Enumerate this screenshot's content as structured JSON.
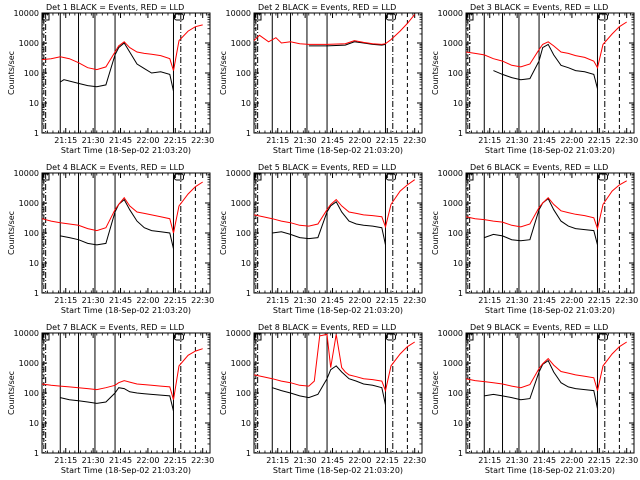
{
  "chart_data": [
    {
      "type": "line",
      "title": "Det 1  BLACK = Events, RED = LLD",
      "ylabel": "Counts/sec",
      "xlabel": "Start Time (18-Sep-02 21:03:20)",
      "xticks": [
        "21:15",
        "21:30",
        "21:45",
        "22:00",
        "22:15",
        "22:30"
      ],
      "yticks": [
        "1",
        "10",
        "100",
        "1000",
        "10000"
      ],
      "ylim": [
        1,
        10000
      ],
      "yscale": "log",
      "series": [
        {
          "color": "#000000",
          "x": [
            0,
            8,
            10,
            12,
            20,
            25,
            30,
            35,
            40,
            42,
            45,
            48,
            52,
            56,
            60,
            65,
            70,
            72,
            75,
            80,
            84,
            88
          ],
          "y": [
            null,
            null,
            50,
            60,
            45,
            38,
            35,
            40,
            400,
            700,
            1000,
            500,
            200,
            140,
            100,
            110,
            90,
            25,
            null,
            null,
            null,
            null
          ]
        },
        {
          "color": "#ff0000",
          "x": [
            0,
            5,
            10,
            15,
            20,
            25,
            30,
            35,
            40,
            42,
            45,
            48,
            52,
            56,
            60,
            65,
            70,
            72,
            75,
            80,
            84,
            88
          ],
          "y": [
            280,
            300,
            350,
            300,
            220,
            150,
            130,
            160,
            500,
            800,
            1100,
            700,
            500,
            450,
            420,
            380,
            300,
            120,
            1200,
            2500,
            3500,
            4000
          ]
        }
      ]
    },
    {
      "type": "line",
      "title": "Det 2  BLACK = Events, RED = LLD",
      "ylabel": "Counts/sec",
      "xlabel": "Start Time (18-Sep-02 21:03:20)",
      "xticks": [
        "21:15",
        "21:30",
        "21:45",
        "22:00",
        "22:15",
        "22:30"
      ],
      "yticks": [
        "1",
        "10",
        "100",
        "1000",
        "10000"
      ],
      "ylim": [
        1,
        10000
      ],
      "yscale": "log",
      "series": [
        {
          "color": "#000000",
          "x": [
            0,
            10,
            20,
            30,
            40,
            50,
            55,
            60,
            65,
            70,
            72,
            75,
            80,
            84,
            88
          ],
          "y": [
            null,
            null,
            null,
            800,
            800,
            850,
            1100,
            1000,
            900,
            850,
            900,
            null,
            null,
            null,
            null
          ]
        },
        {
          "color": "#ff0000",
          "x": [
            0,
            3,
            8,
            12,
            15,
            20,
            25,
            30,
            40,
            50,
            55,
            60,
            65,
            70,
            72,
            75,
            80,
            84,
            88
          ],
          "y": [
            1200,
            1800,
            1100,
            1500,
            1000,
            1100,
            950,
            900,
            900,
            950,
            1200,
            1050,
            950,
            900,
            950,
            1300,
            2500,
            4500,
            9000
          ]
        }
      ]
    },
    {
      "type": "line",
      "title": "Det 3  BLACK = Events, RED = LLD",
      "ylabel": "Counts/sec",
      "xlabel": "Start Time (18-Sep-02 21:03:20)",
      "xticks": [
        "21:15",
        "21:30",
        "21:45",
        "22:00",
        "22:15",
        "22:30"
      ],
      "yticks": [
        "1",
        "10",
        "100",
        "1000",
        "10000"
      ],
      "ylim": [
        1,
        10000
      ],
      "yscale": "log",
      "series": [
        {
          "color": "#000000",
          "x": [
            0,
            10,
            15,
            20,
            25,
            30,
            35,
            40,
            42,
            45,
            48,
            52,
            56,
            60,
            65,
            70,
            72,
            75,
            80,
            84,
            88
          ],
          "y": [
            null,
            null,
            120,
            90,
            70,
            60,
            65,
            250,
            700,
            900,
            400,
            180,
            150,
            120,
            110,
            90,
            30,
            null,
            null,
            null,
            null
          ]
        },
        {
          "color": "#ff0000",
          "x": [
            0,
            5,
            10,
            15,
            20,
            25,
            30,
            35,
            40,
            42,
            45,
            48,
            52,
            56,
            60,
            65,
            70,
            72,
            75,
            80,
            84,
            88
          ],
          "y": [
            500,
            450,
            400,
            300,
            250,
            180,
            160,
            200,
            600,
            900,
            1100,
            800,
            500,
            450,
            380,
            330,
            250,
            150,
            900,
            2000,
            3500,
            5000
          ]
        }
      ]
    },
    {
      "type": "line",
      "title": "Det 4  BLACK = Events, RED = LLD",
      "ylabel": "Counts/sec",
      "xlabel": "Start Time (18-Sep-02 21:03:20)",
      "xticks": [
        "21:15",
        "21:30",
        "21:45",
        "22:00",
        "22:15",
        "22:30"
      ],
      "yticks": [
        "1",
        "10",
        "100",
        "1000",
        "10000"
      ],
      "ylim": [
        1,
        10000
      ],
      "yscale": "log",
      "series": [
        {
          "color": "#000000",
          "x": [
            0,
            8,
            10,
            15,
            20,
            25,
            30,
            35,
            40,
            42,
            45,
            48,
            52,
            56,
            60,
            65,
            70,
            72,
            75,
            80,
            84,
            88
          ],
          "y": [
            null,
            null,
            80,
            70,
            60,
            45,
            40,
            45,
            500,
            900,
            1300,
            600,
            250,
            150,
            120,
            110,
            100,
            30,
            null,
            null,
            null,
            null
          ]
        },
        {
          "color": "#ff0000",
          "x": [
            0,
            5,
            10,
            15,
            20,
            25,
            30,
            35,
            40,
            42,
            45,
            48,
            52,
            56,
            60,
            65,
            70,
            72,
            75,
            80,
            84,
            88
          ],
          "y": [
            300,
            250,
            220,
            200,
            180,
            140,
            120,
            150,
            600,
            900,
            1500,
            800,
            500,
            450,
            400,
            350,
            300,
            100,
            800,
            2000,
            3500,
            5000
          ]
        }
      ]
    },
    {
      "type": "line",
      "title": "Det 5  BLACK = Events, RED = LLD",
      "ylabel": "Counts/sec",
      "xlabel": "Start Time (18-Sep-02 21:03:20)",
      "xticks": [
        "21:15",
        "21:30",
        "21:45",
        "22:00",
        "22:15",
        "22:30"
      ],
      "yticks": [
        "1",
        "10",
        "100",
        "1000",
        "10000"
      ],
      "ylim": [
        1,
        10000
      ],
      "yscale": "log",
      "series": [
        {
          "color": "#000000",
          "x": [
            0,
            8,
            10,
            15,
            20,
            25,
            30,
            35,
            40,
            42,
            45,
            48,
            52,
            56,
            60,
            65,
            70,
            72,
            75,
            80,
            84,
            88
          ],
          "y": [
            null,
            null,
            100,
            110,
            90,
            70,
            65,
            70,
            500,
            800,
            1100,
            500,
            250,
            200,
            180,
            170,
            150,
            40,
            null,
            null,
            null,
            null
          ]
        },
        {
          "color": "#ff0000",
          "x": [
            0,
            5,
            10,
            15,
            20,
            25,
            30,
            35,
            40,
            42,
            45,
            48,
            52,
            56,
            60,
            65,
            70,
            72,
            75,
            80,
            84,
            88
          ],
          "y": [
            400,
            350,
            300,
            250,
            220,
            180,
            170,
            200,
            600,
            900,
            1300,
            800,
            500,
            450,
            400,
            380,
            350,
            160,
            900,
            2500,
            4000,
            6000
          ]
        }
      ]
    },
    {
      "type": "line",
      "title": "Det 6  BLACK = Events, RED = LLD",
      "ylabel": "Counts/sec",
      "xlabel": "Start Time (18-Sep-02 21:03:20)",
      "xticks": [
        "21:15",
        "21:30",
        "21:45",
        "22:00",
        "22:15",
        "22:30"
      ],
      "yticks": [
        "1",
        "10",
        "100",
        "1000",
        "10000"
      ],
      "ylim": [
        1,
        10000
      ],
      "yscale": "log",
      "series": [
        {
          "color": "#000000",
          "x": [
            0,
            8,
            10,
            15,
            20,
            25,
            30,
            35,
            40,
            42,
            45,
            48,
            52,
            56,
            60,
            65,
            70,
            72,
            75,
            80,
            84,
            88
          ],
          "y": [
            null,
            null,
            70,
            90,
            80,
            60,
            55,
            60,
            600,
            1000,
            1400,
            600,
            250,
            170,
            140,
            130,
            120,
            40,
            null,
            null,
            null,
            null
          ]
        },
        {
          "color": "#ff0000",
          "x": [
            0,
            5,
            10,
            15,
            20,
            25,
            30,
            35,
            40,
            42,
            45,
            48,
            52,
            56,
            60,
            65,
            70,
            72,
            75,
            80,
            84,
            88
          ],
          "y": [
            350,
            300,
            280,
            250,
            230,
            180,
            160,
            200,
            700,
            1000,
            1500,
            900,
            550,
            480,
            420,
            380,
            320,
            140,
            900,
            2500,
            4000,
            5500
          ]
        }
      ]
    },
    {
      "type": "line",
      "title": "Det 7  BLACK = Events, RED = LLD",
      "ylabel": "Counts/sec",
      "xlabel": "Start Time (18-Sep-02 21:03:20)",
      "xticks": [
        "21:15",
        "21:30",
        "21:45",
        "22:00",
        "22:15",
        "22:30"
      ],
      "yticks": [
        "1",
        "10",
        "100",
        "1000",
        "10000"
      ],
      "ylim": [
        1,
        10000
      ],
      "yscale": "log",
      "series": [
        {
          "color": "#000000",
          "x": [
            0,
            8,
            10,
            15,
            20,
            25,
            30,
            35,
            40,
            42,
            45,
            48,
            52,
            56,
            60,
            65,
            70,
            72,
            75,
            80,
            84,
            88
          ],
          "y": [
            null,
            null,
            70,
            60,
            55,
            50,
            45,
            50,
            100,
            150,
            140,
            110,
            100,
            95,
            90,
            85,
            80,
            25,
            null,
            null,
            null,
            null
          ]
        },
        {
          "color": "#ff0000",
          "x": [
            0,
            5,
            10,
            15,
            20,
            25,
            30,
            35,
            40,
            42,
            45,
            48,
            52,
            56,
            60,
            65,
            70,
            72,
            75,
            80,
            84,
            88
          ],
          "y": [
            200,
            180,
            170,
            160,
            150,
            140,
            130,
            150,
            180,
            220,
            260,
            230,
            200,
            190,
            180,
            170,
            160,
            60,
            800,
            1800,
            2500,
            3000
          ]
        }
      ]
    },
    {
      "type": "line",
      "title": "Det 8  BLACK = Events, RED = LLD",
      "ylabel": "Counts/sec",
      "xlabel": "Start Time (18-Sep-02 21:03:20)",
      "xticks": [
        "21:15",
        "21:30",
        "21:45",
        "22:00",
        "22:15",
        "22:30"
      ],
      "yticks": [
        "1",
        "10",
        "100",
        "1000",
        "10000"
      ],
      "ylim": [
        1,
        10000
      ],
      "yscale": "log",
      "series": [
        {
          "color": "#000000",
          "x": [
            0,
            8,
            10,
            15,
            20,
            25,
            30,
            35,
            40,
            42,
            45,
            48,
            52,
            56,
            60,
            65,
            70,
            72,
            75,
            80,
            84,
            88
          ],
          "y": [
            null,
            null,
            150,
            120,
            100,
            80,
            70,
            90,
            300,
            600,
            800,
            500,
            300,
            250,
            200,
            180,
            150,
            40,
            null,
            null,
            null,
            null
          ]
        },
        {
          "color": "#ff0000",
          "x": [
            0,
            5,
            10,
            15,
            20,
            25,
            30,
            33,
            36,
            40,
            42,
            45,
            48,
            50,
            52,
            56,
            60,
            65,
            70,
            72,
            75,
            80,
            84,
            88
          ],
          "y": [
            400,
            350,
            300,
            250,
            220,
            180,
            170,
            250,
            8000,
            9000,
            700,
            9000,
            700,
            500,
            400,
            350,
            300,
            280,
            250,
            120,
            800,
            2000,
            3500,
            5000
          ]
        }
      ]
    },
    {
      "type": "line",
      "title": "Det 9  BLACK = Events, RED = LLD",
      "ylabel": "Counts/sec",
      "xlabel": "Start Time (18-Sep-02 21:03:20)",
      "xticks": [
        "21:15",
        "21:30",
        "21:45",
        "22:00",
        "22:15",
        "22:30"
      ],
      "yticks": [
        "1",
        "10",
        "100",
        "1000",
        "10000"
      ],
      "ylim": [
        1,
        10000
      ],
      "yscale": "log",
      "series": [
        {
          "color": "#000000",
          "x": [
            0,
            8,
            10,
            15,
            20,
            25,
            30,
            35,
            40,
            42,
            45,
            48,
            52,
            56,
            60,
            65,
            70,
            72,
            75,
            80,
            84,
            88
          ],
          "y": [
            null,
            null,
            80,
            90,
            80,
            70,
            60,
            65,
            500,
            900,
            1200,
            500,
            220,
            160,
            140,
            130,
            120,
            30,
            null,
            null,
            null,
            null
          ]
        },
        {
          "color": "#ff0000",
          "x": [
            0,
            5,
            10,
            15,
            20,
            25,
            30,
            35,
            40,
            42,
            45,
            48,
            52,
            56,
            60,
            65,
            70,
            72,
            75,
            80,
            84,
            88
          ],
          "y": [
            300,
            260,
            240,
            220,
            200,
            170,
            150,
            190,
            650,
            950,
            1400,
            850,
            520,
            460,
            400,
            360,
            320,
            120,
            800,
            2000,
            3500,
            5000
          ]
        }
      ]
    }
  ],
  "markers": {
    "solid_x": [
      10,
      20,
      29,
      40,
      72
    ],
    "dashdot_x": [
      2,
      76
    ],
    "dashed_x": [
      1,
      84
    ]
  }
}
